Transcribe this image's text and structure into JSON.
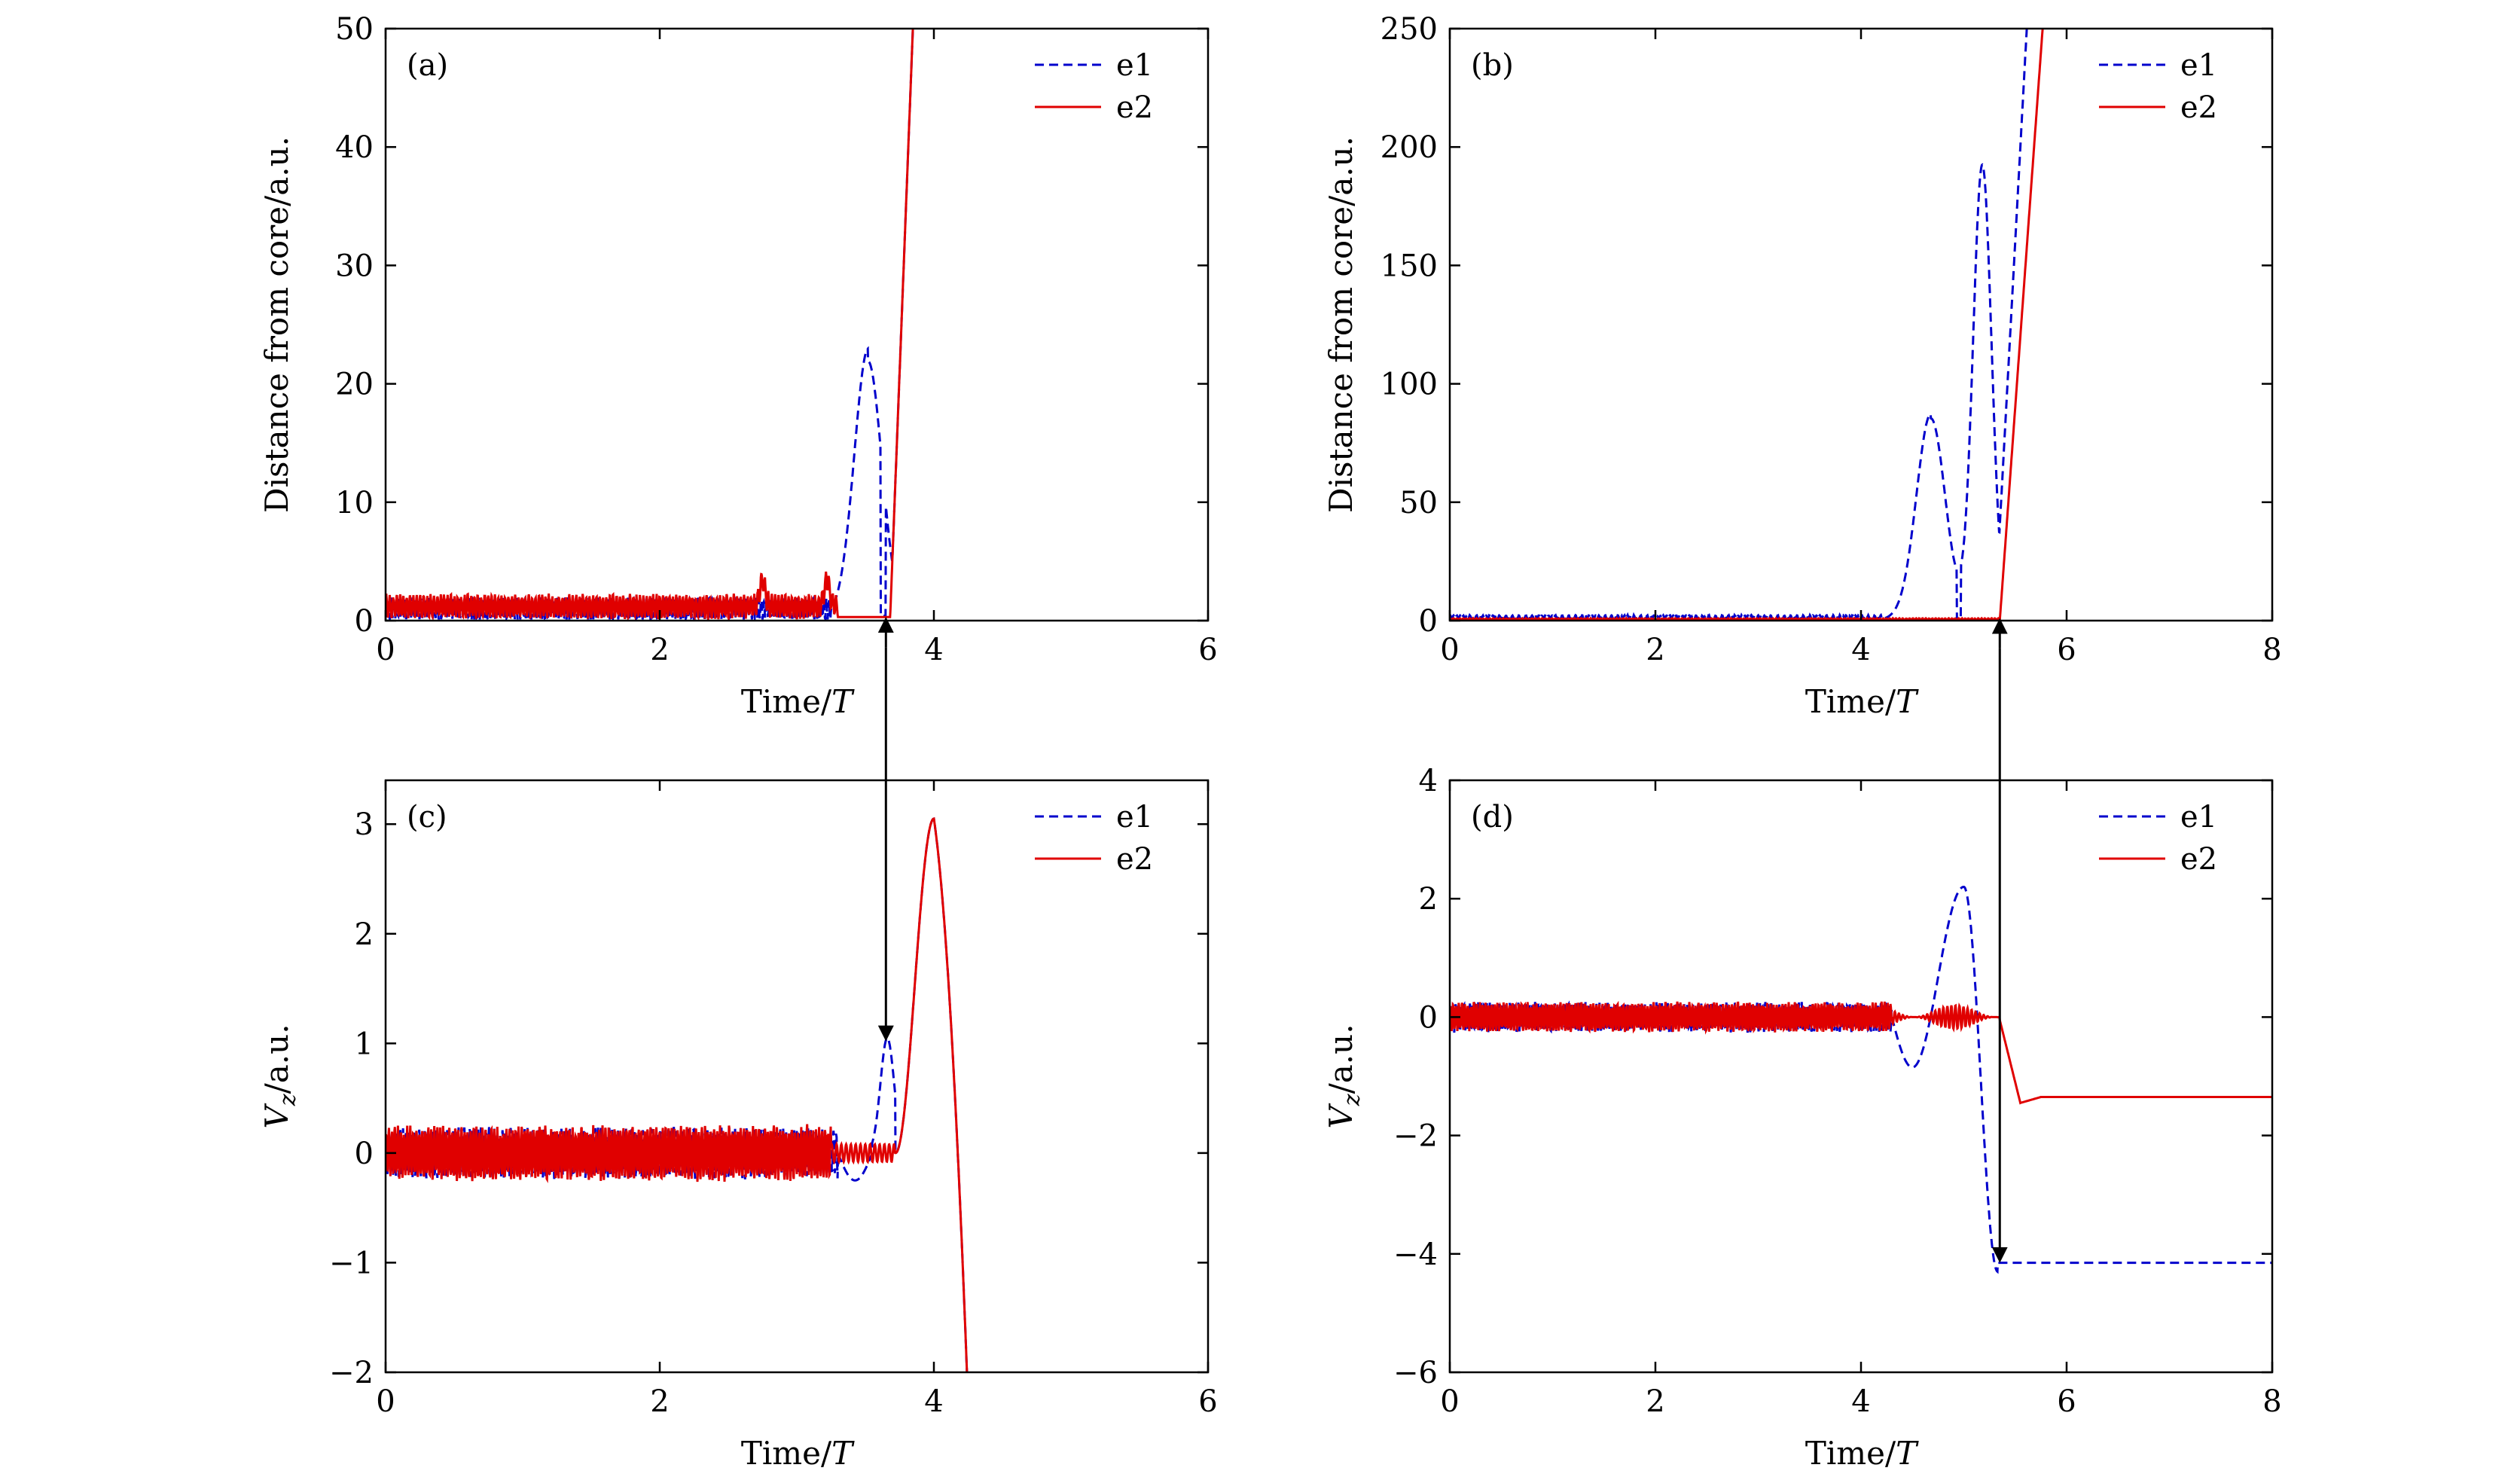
{
  "figure": {
    "arrow_links": [
      {
        "from_panel": "a",
        "to_panel": "c",
        "t": 3.65,
        "from_y": 0.3,
        "to_y": 1.02
      },
      {
        "from_panel": "b",
        "to_panel": "d",
        "t": 5.35,
        "from_y": 1.0,
        "to_y": -4.15
      }
    ]
  },
  "chart_data": [
    {
      "type": "line",
      "panel": "(a)",
      "title": "",
      "xlabel": "Time/",
      "xlabel_italic": "T",
      "ylabel": "Distance from core/a.u.",
      "xlim": [
        0,
        6
      ],
      "ylim": [
        0,
        50
      ],
      "xticks": [
        0,
        2,
        4,
        6
      ],
      "yticks": [
        0,
        10,
        20,
        30,
        40,
        50
      ],
      "legend": {
        "position": "top-right",
        "entries": [
          "e1",
          "e2"
        ]
      },
      "series": [
        {
          "name": "e1",
          "style": "dashed",
          "color": "#0000cc",
          "model": {
            "kind": "osc-then-escape",
            "osc_end": 3.25,
            "base": 1.0,
            "amp": 0.9,
            "freq": 3.6,
            "peaks": [
              {
                "t": 3.52,
                "h": 21.5,
                "w": 0.1
              }
            ],
            "dip": 3.63,
            "esc_start": 3.68,
            "esc_slope": 300
          }
        },
        {
          "name": "e2",
          "style": "solid",
          "color": "#e00000",
          "model": {
            "kind": "osc-then-escape",
            "osc_end": 3.3,
            "base": 1.2,
            "amp": 1.0,
            "freq": 2.9,
            "spikes": [
              2.75,
              3.22
            ],
            "flat_until": 3.68,
            "flat_value": 0.3,
            "esc_start": 3.68,
            "esc_slope": 300
          }
        }
      ]
    },
    {
      "type": "line",
      "panel": "(b)",
      "title": "",
      "xlabel": "Time/",
      "xlabel_italic": "T",
      "ylabel": "Distance from core/a.u.",
      "xlim": [
        0,
        8
      ],
      "ylim": [
        0,
        250
      ],
      "xticks": [
        0,
        2,
        4,
        6,
        8
      ],
      "yticks": [
        0,
        50,
        100,
        150,
        200,
        250
      ],
      "legend": {
        "position": "top-right",
        "entries": [
          "e1",
          "e2"
        ]
      },
      "series": [
        {
          "name": "e1",
          "style": "dashed",
          "color": "#0000cc",
          "model": {
            "kind": "osc-then-escape",
            "osc_end": 4.2,
            "base": 1.5,
            "amp": 0.8,
            "freq": 3.0,
            "peaks": [
              {
                "t": 4.68,
                "h": 85,
                "w": 0.14
              },
              {
                "t": 5.18,
                "h": 192,
                "w": 0.09
              }
            ],
            "dip": 4.95,
            "esc_start": 5.3,
            "esc_slope": 800
          }
        },
        {
          "name": "e2",
          "style": "solid",
          "color": "#e00000",
          "model": {
            "kind": "osc-then-escape",
            "osc_end": 5.35,
            "base": 0.6,
            "amp": 0.4,
            "freq": 3.0,
            "esc_start": 5.35,
            "esc_slope": 600
          }
        }
      ]
    },
    {
      "type": "line",
      "panel": "(c)",
      "title": "",
      "xlabel": "Time/",
      "xlabel_italic": "T",
      "ylabel": "V",
      "ylabel_sub": "z",
      "ylabel_suffix": "/a.u.",
      "xlim": [
        0,
        6
      ],
      "ylim": [
        -2,
        3.4
      ],
      "xticks": [
        0,
        2,
        4,
        6
      ],
      "yticks": [
        -2,
        -1,
        0,
        1,
        2,
        3
      ],
      "legend": {
        "position": "top-right",
        "entries": [
          "e1",
          "e2"
        ]
      },
      "series": [
        {
          "name": "e1",
          "style": "dashed",
          "color": "#0000cc",
          "model": {
            "kind": "velocity",
            "osc_end": 3.3,
            "amp": 0.2,
            "freq": 3.2,
            "bump": {
              "t": 3.66,
              "h": 1.05,
              "w": 0.05
            },
            "dip": -0.25,
            "peak": {
              "t": 4.0,
              "h": 3.05
            },
            "fall_end": 4.25,
            "fall_value": -2.3
          }
        },
        {
          "name": "e2",
          "style": "solid",
          "color": "#e00000",
          "model": {
            "kind": "velocity",
            "osc_end": 3.25,
            "amp": 0.22,
            "freq": 3.0,
            "ripple": {
              "from": 3.25,
              "to": 3.72,
              "amp": 0.08
            },
            "peak": {
              "t": 4.0,
              "h": 3.05
            },
            "fall_end": 4.25,
            "fall_value": -2.3
          }
        }
      ]
    },
    {
      "type": "line",
      "panel": "(d)",
      "title": "",
      "xlabel": "Time/",
      "xlabel_italic": "T",
      "ylabel": "V",
      "ylabel_sub": "z",
      "ylabel_suffix": "/a.u.",
      "xlim": [
        0,
        8
      ],
      "ylim": [
        -6,
        4
      ],
      "xticks": [
        0,
        2,
        4,
        6,
        8
      ],
      "yticks": [
        -6,
        -4,
        -2,
        0,
        2,
        4
      ],
      "legend": {
        "position": "top-right",
        "entries": [
          "e1",
          "e2"
        ]
      },
      "series": [
        {
          "name": "e1",
          "style": "dashed",
          "color": "#0000cc",
          "model": {
            "kind": "velocity-d",
            "osc_end": 4.3,
            "amp": 0.22,
            "freq": 3.2,
            "swing": [
              {
                "t": 4.5,
                "v": -0.85
              },
              {
                "t": 5.0,
                "v": 2.2
              },
              {
                "t": 5.33,
                "v": -4.3
              }
            ],
            "final": -4.15
          }
        },
        {
          "name": "e2",
          "style": "solid",
          "color": "#e00000",
          "model": {
            "kind": "velocity-d",
            "osc_end": 4.3,
            "amp": 0.22,
            "freq": 3.0,
            "ripple": {
              "from": 4.3,
              "to": 5.35,
              "amp": 0.2
            },
            "drop": [
              {
                "t": 5.35,
                "v": -0.05
              },
              {
                "t": 5.55,
                "v": -1.45
              },
              {
                "t": 5.75,
                "v": -1.35
              }
            ],
            "final": -1.35
          }
        }
      ]
    }
  ]
}
